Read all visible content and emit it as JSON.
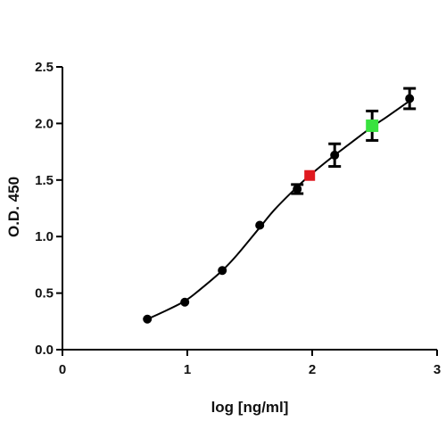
{
  "chart_data": {
    "type": "scatter",
    "xlabel": "log [ng/ml]",
    "ylabel": "O.D. 450",
    "xlim": [
      0,
      3
    ],
    "ylim": [
      0,
      2.5
    ],
    "xticks": [
      0,
      1,
      2,
      3
    ],
    "yticks": [
      0.0,
      0.5,
      1.0,
      1.5,
      2.0,
      2.5
    ],
    "xtick_labels": [
      "0",
      "1",
      "2",
      "3"
    ],
    "ytick_labels": [
      "0.0",
      "0.5",
      "1.0",
      "1.5",
      "2.0",
      "2.5"
    ],
    "grid": false,
    "series": [
      {
        "color": "#000000",
        "marker": "circle",
        "x": [
          0.68,
          0.98,
          1.28,
          1.58,
          1.88,
          2.18,
          2.78
        ],
        "y": [
          0.27,
          0.42,
          0.7,
          1.1,
          1.42,
          1.72,
          2.22
        ],
        "error": [
          0,
          0,
          0,
          0,
          0.04,
          0.1,
          0.09
        ]
      },
      {
        "color": "#e0191f",
        "marker": "square",
        "x": [
          1.98
        ],
        "y": [
          1.54
        ],
        "error": [
          0
        ]
      },
      {
        "color": "#39e23f",
        "marker": "square",
        "x": [
          2.48
        ],
        "y": [
          1.98
        ],
        "error": [
          0.13
        ]
      }
    ],
    "fit_curve": {
      "type": "sigmoid",
      "color": "#000000",
      "x": [
        0.68,
        0.8,
        0.98,
        1.1,
        1.28,
        1.4,
        1.58,
        1.7,
        1.88,
        1.98,
        2.1,
        2.18,
        2.3,
        2.48,
        2.6,
        2.78
      ],
      "y": [
        0.27,
        0.33,
        0.43,
        0.53,
        0.7,
        0.84,
        1.08,
        1.24,
        1.44,
        1.54,
        1.65,
        1.72,
        1.82,
        1.97,
        2.06,
        2.2
      ]
    }
  }
}
